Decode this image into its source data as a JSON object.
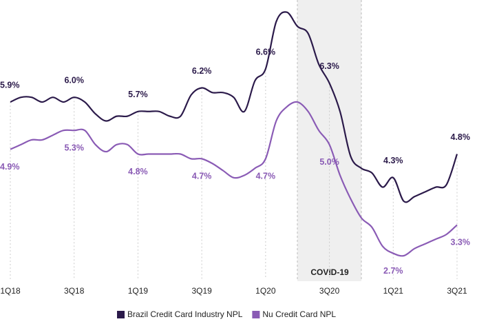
{
  "chart_data": {
    "type": "line",
    "categories": [
      "1Q18",
      null,
      null,
      null,
      null,
      null,
      "3Q18",
      null,
      null,
      null,
      null,
      null,
      "1Q19",
      null,
      null,
      null,
      null,
      null,
      "3Q19",
      null,
      null,
      null,
      null,
      null,
      "1Q20",
      null,
      null,
      null,
      null,
      null,
      "3Q20",
      null,
      null,
      null,
      null,
      null,
      "1Q21",
      null,
      null,
      null,
      null,
      null,
      "3Q21"
    ],
    "series": [
      {
        "name": "Brazil Credit Card Industry NPL",
        "color": "#2b1a4a",
        "values": [
          5.9,
          6.0,
          6.0,
          5.9,
          6.0,
          5.9,
          6.0,
          5.9,
          5.65,
          5.5,
          5.6,
          5.6,
          5.7,
          5.7,
          5.7,
          5.6,
          5.6,
          6.05,
          6.2,
          6.1,
          6.1,
          6.0,
          5.7,
          6.35,
          6.6,
          7.6,
          7.8,
          7.5,
          7.35,
          6.7,
          6.3,
          5.7,
          4.75,
          4.5,
          4.4,
          4.1,
          4.3,
          3.8,
          3.9,
          4.0,
          4.1,
          4.15,
          4.8
        ],
        "value_labels": [
          "5.9%",
          null,
          null,
          null,
          null,
          null,
          "6.0%",
          null,
          null,
          null,
          null,
          null,
          "5.7%",
          null,
          null,
          null,
          null,
          null,
          "6.2%",
          null,
          null,
          null,
          null,
          null,
          "6.6%",
          null,
          null,
          null,
          null,
          null,
          "6.3%",
          null,
          null,
          null,
          null,
          null,
          "4.3%",
          null,
          null,
          null,
          null,
          null,
          "4.8%"
        ]
      },
      {
        "name": "Nu Credit Card NPL",
        "color": "#8a5bb5",
        "values": [
          4.9,
          5.0,
          5.1,
          5.1,
          5.2,
          5.3,
          5.3,
          5.3,
          5.0,
          4.85,
          5.0,
          5.0,
          4.8,
          4.8,
          4.8,
          4.8,
          4.8,
          4.7,
          4.7,
          4.6,
          4.45,
          4.3,
          4.35,
          4.5,
          4.7,
          5.5,
          5.8,
          5.9,
          5.7,
          5.3,
          5.0,
          4.35,
          3.85,
          3.45,
          3.25,
          2.85,
          2.7,
          2.65,
          2.8,
          2.9,
          3.0,
          3.1,
          3.3
        ],
        "value_labels": [
          "4.9%",
          null,
          null,
          null,
          null,
          null,
          "5.3%",
          null,
          null,
          null,
          null,
          null,
          "4.8%",
          null,
          null,
          null,
          null,
          null,
          "4.7%",
          null,
          null,
          null,
          null,
          null,
          "4.7%",
          null,
          null,
          null,
          null,
          null,
          "5.0%",
          null,
          null,
          null,
          null,
          null,
          "2.7%",
          null,
          null,
          null,
          null,
          null,
          "3.3%"
        ]
      }
    ],
    "ylim": [
      2.3,
      8.0
    ],
    "annotations": [
      "COVID-19"
    ]
  }
}
